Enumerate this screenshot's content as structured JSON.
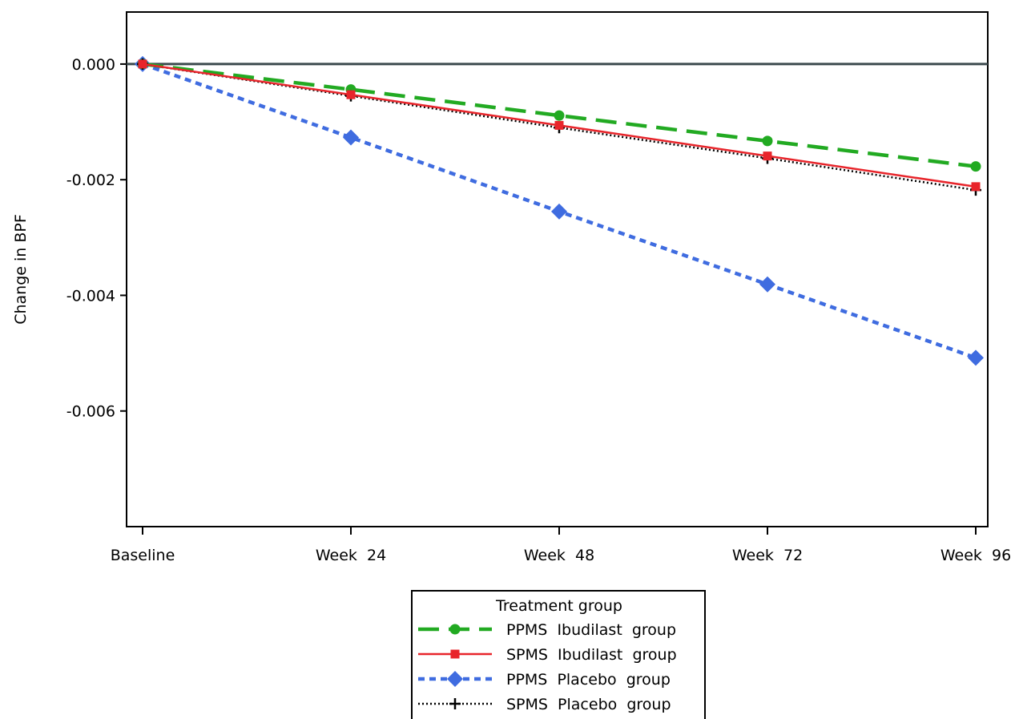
{
  "chart_data": {
    "type": "line",
    "title": "",
    "xlabel": "",
    "ylabel": "Change in BPF",
    "categories": [
      "Baseline",
      "Week  24",
      "Week  48",
      "Week  72",
      "Week  96"
    ],
    "ylim": [
      -0.008,
      0.0009
    ],
    "yticks": [
      {
        "value": 0.0,
        "label": "0.000"
      },
      {
        "value": -0.002,
        "label": "-0.002"
      },
      {
        "value": -0.004,
        "label": "-0.004"
      },
      {
        "value": -0.006,
        "label": "-0.006"
      }
    ],
    "reference_line": 0.0,
    "grid": false,
    "legend": {
      "title": "Treatment group",
      "placement": "bottom-center"
    },
    "series": [
      {
        "name": "PPMS  Ibudilast  group",
        "color": "#22aa22",
        "line_style": "long-dash",
        "marker": "circle",
        "values": [
          0.0,
          -0.00044,
          -0.00089,
          -0.00133,
          -0.00177
        ]
      },
      {
        "name": "SPMS  Ibudilast  group",
        "color": "#e8252b",
        "line_style": "solid",
        "marker": "square",
        "values": [
          0.0,
          -0.00053,
          -0.00106,
          -0.00159,
          -0.00212
        ]
      },
      {
        "name": "PPMS  Placebo  group",
        "color": "#3f6ce0",
        "line_style": "short-dash",
        "marker": "diamond",
        "values": [
          0.0,
          -0.00127,
          -0.00255,
          -0.00381,
          -0.00508
        ]
      },
      {
        "name": "SPMS  Placebo  group",
        "color": "#000000",
        "line_style": "dotted",
        "marker": "plus",
        "values": [
          0.0,
          -0.00055,
          -0.0011,
          -0.00163,
          -0.00218
        ]
      }
    ]
  }
}
